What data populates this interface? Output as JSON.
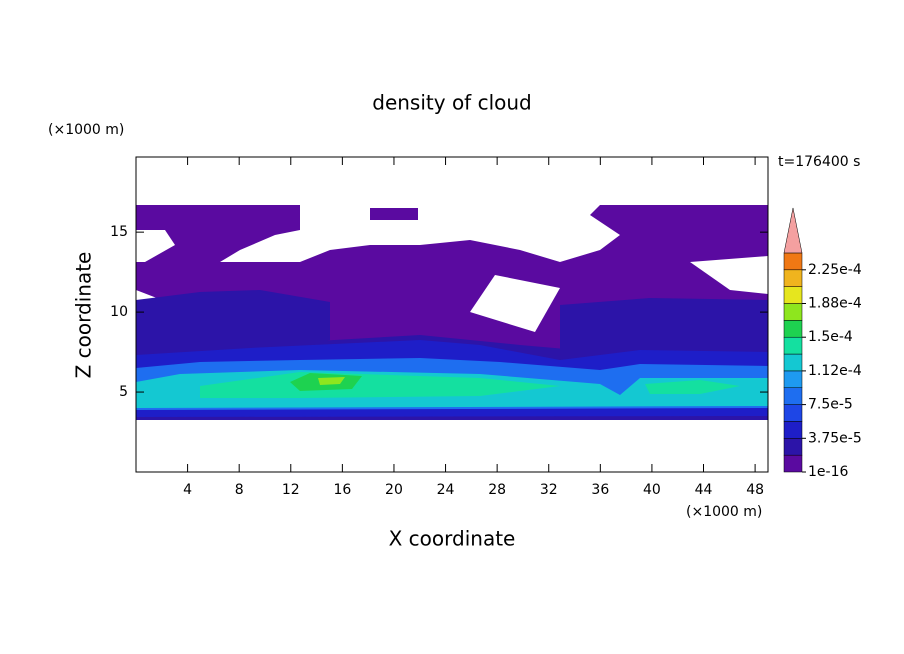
{
  "chart_data": {
    "type": "contour",
    "title": "density of cloud",
    "x_label": "X coordinate",
    "y_label": "Z coordinate",
    "x_unit": "(×1000 m)",
    "y_unit": "(×1000 m)",
    "annotation": "t=176400 s",
    "xlim": [
      0,
      49
    ],
    "ylim": [
      0,
      19.7
    ],
    "xticks": [
      4,
      8,
      12,
      16,
      20,
      24,
      28,
      32,
      36,
      40,
      44,
      48
    ],
    "yticks": [
      5,
      10,
      15
    ],
    "colorbar": {
      "levels": [
        1e-16,
        1.875e-05,
        3.75e-05,
        5.625e-05,
        7.5e-05,
        9.375e-05,
        0.0001125,
        0.00013125,
        0.00015,
        0.00016875,
        0.0001875,
        0.00020625,
        0.000225,
        0.00024375
      ],
      "colors": [
        "#5a0aa0",
        "#2c14a8",
        "#1e1ec8",
        "#1e46e6",
        "#1e6ef0",
        "#1e9af0",
        "#14c8d2",
        "#14e0a0",
        "#1ed250",
        "#8ee61e",
        "#e6e61e",
        "#f0b41e",
        "#f07814"
      ],
      "extend_color": "#f4a0a0",
      "ticks": [
        {
          "value": 1e-16,
          "label": "1e-16"
        },
        {
          "value": 3.75e-05,
          "label": "3.75e-5"
        },
        {
          "value": 7.5e-05,
          "label": "7.5e-5"
        },
        {
          "value": 0.0001125,
          "label": "1.12e-4"
        },
        {
          "value": 0.00015,
          "label": "1.5e-4"
        },
        {
          "value": 0.0001875,
          "label": "1.88e-4"
        },
        {
          "value": 0.000225,
          "label": "2.25e-4"
        }
      ]
    }
  }
}
